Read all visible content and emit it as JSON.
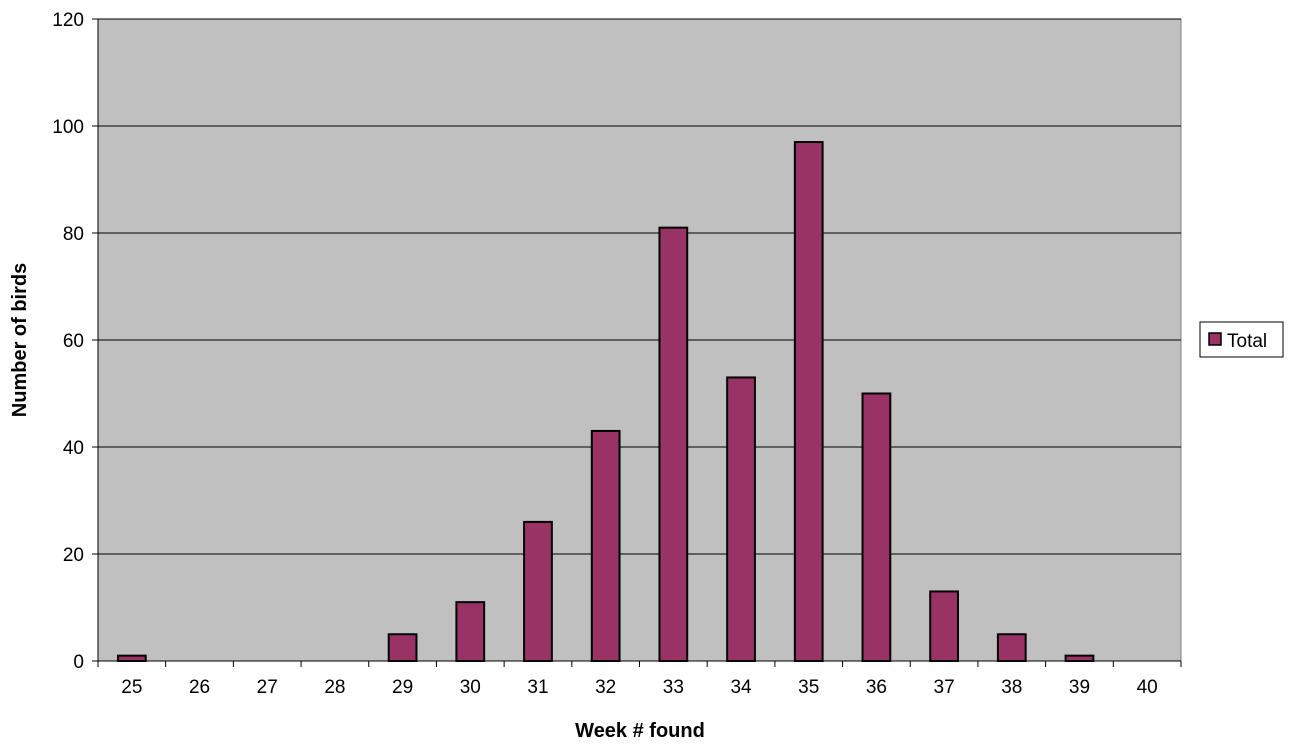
{
  "chart_data": {
    "type": "bar",
    "title": "",
    "xlabel": "Week # found",
    "ylabel": "Number of birds",
    "ylim": [
      0,
      120
    ],
    "yticks": [
      0,
      20,
      40,
      60,
      80,
      100,
      120
    ],
    "grid": true,
    "legend_position": "right",
    "categories": [
      "25",
      "26",
      "27",
      "28",
      "29",
      "30",
      "31",
      "32",
      "33",
      "34",
      "35",
      "36",
      "37",
      "38",
      "39",
      "40"
    ],
    "series": [
      {
        "name": "Total",
        "color": "#993366",
        "values": [
          1,
          0,
          0,
          0,
          5,
          11,
          26,
          43,
          81,
          53,
          97,
          50,
          13,
          5,
          1,
          0
        ]
      }
    ],
    "plot_background": "#c0c0c0"
  }
}
